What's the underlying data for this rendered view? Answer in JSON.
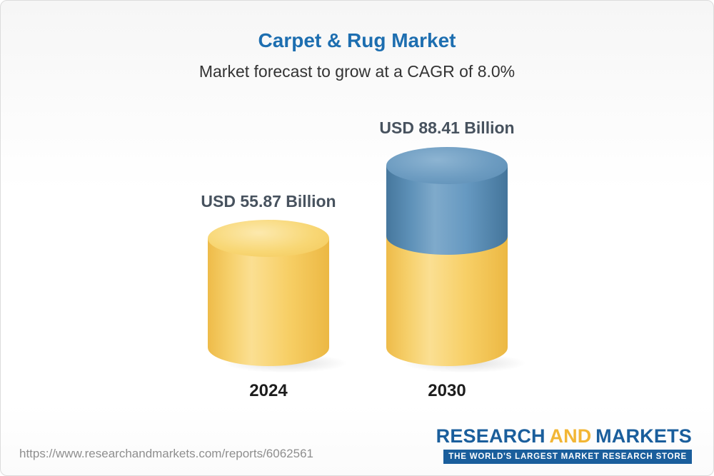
{
  "page": {
    "title": "Carpet & Rug Market",
    "subtitle": "Market forecast to grow at a CAGR of 8.0%"
  },
  "chart_data": {
    "type": "bar",
    "variant": "3d-cylinder",
    "title": "Carpet & Rug Market",
    "subtitle": "Market forecast to grow at a CAGR of 8.0%",
    "cagr": "8.0%",
    "unit": "USD Billion",
    "categories": [
      "2024",
      "2030"
    ],
    "values": [
      55.87,
      88.41
    ],
    "value_labels": [
      "USD 55.87 Billion",
      "USD 88.41 Billion"
    ],
    "colors": {
      "title": "#1d6eb0",
      "bar_2024": "#f6cd62",
      "bar_2030_top_segment": "#6397bf",
      "bar_2030_bottom_segment": "#f6cd62",
      "value_label_text": "#47525e",
      "year_label_text": "#1d1d1d"
    },
    "legend": "none",
    "grid": false
  },
  "footer": {
    "url": "https://www.researchandmarkets.com/reports/6062561",
    "logo": {
      "research": "RESEARCH",
      "and": "AND",
      "markets": "MARKETS",
      "tagline": "THE WORLD'S LARGEST MARKET RESEARCH STORE"
    }
  }
}
